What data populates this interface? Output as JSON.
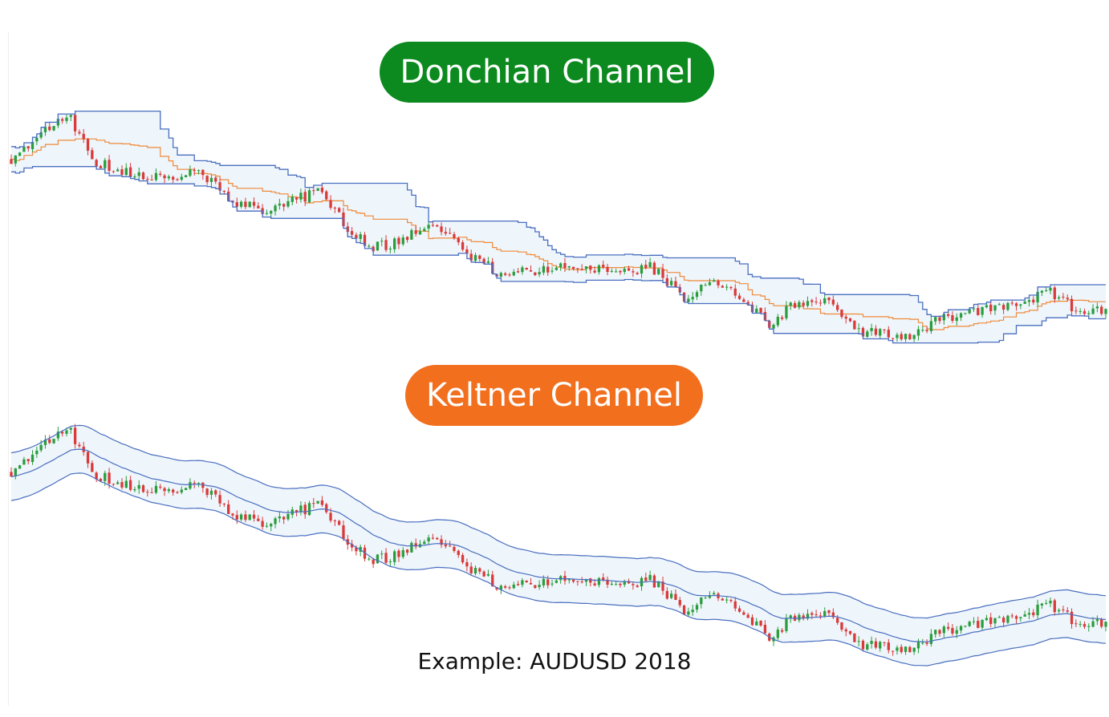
{
  "colors": {
    "up": "#2a9d3c",
    "down": "#d93a3a",
    "band_line": "#4a6fc0",
    "band_fill": "#eef5fb",
    "middle_line": "#ef8a3a",
    "donchian_badge": "#0d8a1f",
    "keltner_badge": "#f26f1e"
  },
  "chart_data": [
    {
      "type": "candlestick",
      "title": "Donchian Channel",
      "subtitle": "",
      "indicator": "donchian",
      "lookback": 20,
      "xlabel": "",
      "ylabel": "",
      "ylim": [
        0.7,
        0.82
      ],
      "grid": false,
      "legend": "none"
    },
    {
      "type": "candlestick",
      "title": "Keltner Channel",
      "subtitle": "",
      "indicator": "keltner",
      "ema_period": 20,
      "atr_multiplier": 2,
      "xlabel": "",
      "ylabel": "",
      "ylim": [
        0.7,
        0.82
      ],
      "grid": false,
      "legend": "none"
    }
  ],
  "caption": "Example: AUDUSD 2018"
}
